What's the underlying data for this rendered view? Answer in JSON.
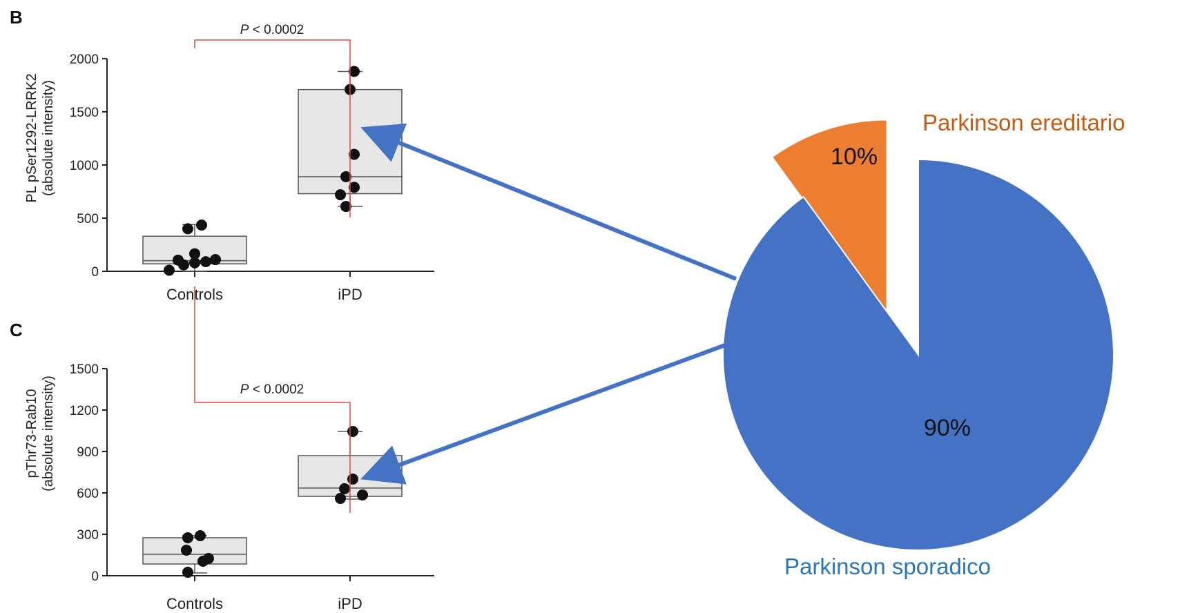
{
  "chart_data": [
    {
      "type": "box",
      "panel_label": "B",
      "ylabel_lines": [
        "PL pSer1292-LRRK2",
        "(absolute intensity)"
      ],
      "ylim": [
        0,
        2000
      ],
      "yticks": [
        "0",
        "500",
        "1000",
        "1500",
        "2000"
      ],
      "ytick_values": [
        0,
        500,
        1000,
        1500,
        2000
      ],
      "categories": [
        "Controls",
        "iPD"
      ],
      "boxes": [
        {
          "name": "Controls",
          "whisker_low": 0,
          "q1": 70,
          "median": 100,
          "q3": 330,
          "whisker_high": 440,
          "points": [
            10,
            60,
            80,
            90,
            105,
            110,
            165,
            400,
            435
          ]
        },
        {
          "name": "iPD",
          "whisker_low": 610,
          "q1": 730,
          "median": 890,
          "q3": 1710,
          "whisker_high": 1880,
          "points": [
            610,
            720,
            790,
            890,
            1100,
            1710,
            1880
          ]
        }
      ],
      "significance": {
        "italic_prefix": "P",
        "text": " < 0.0002"
      }
    },
    {
      "type": "box",
      "panel_label": "C",
      "ylabel_lines": [
        "pThr73-Rab10",
        "(absolute intensity)"
      ],
      "ylim": [
        0,
        1500
      ],
      "yticks": [
        "0",
        "300",
        "600",
        "900",
        "1200",
        "1500"
      ],
      "ytick_values": [
        0,
        300,
        600,
        900,
        1200,
        1500
      ],
      "categories": [
        "Controls",
        "iPD"
      ],
      "boxes": [
        {
          "name": "Controls",
          "whisker_low": 20,
          "q1": 85,
          "median": 155,
          "q3": 275,
          "whisker_high": 290,
          "points": [
            25,
            105,
            125,
            185,
            275,
            290
          ]
        },
        {
          "name": "iPD",
          "whisker_low": 555,
          "q1": 575,
          "median": 635,
          "q3": 870,
          "whisker_high": 1045,
          "points": [
            560,
            585,
            630,
            700,
            1045
          ]
        }
      ],
      "significance": {
        "italic_prefix": "P",
        "text": " < 0.0002"
      }
    },
    {
      "type": "pie",
      "slices": [
        {
          "name": "Parkinson ereditario",
          "value": 10,
          "label": "10%",
          "color": "#ED7D31",
          "label_color": "#C55A11",
          "exploded": true
        },
        {
          "name": "Parkinson sporadico",
          "value": 90,
          "label": "90%",
          "color": "#4472C4",
          "label_color": "#2E75B6",
          "exploded": false
        }
      ]
    }
  ],
  "colors": {
    "box_fill": "#e6e6e6",
    "box_stroke": "#555555",
    "point": "#111111",
    "bracket": "#e8473b",
    "arrow": "#4472C4",
    "axis": "#222222"
  }
}
